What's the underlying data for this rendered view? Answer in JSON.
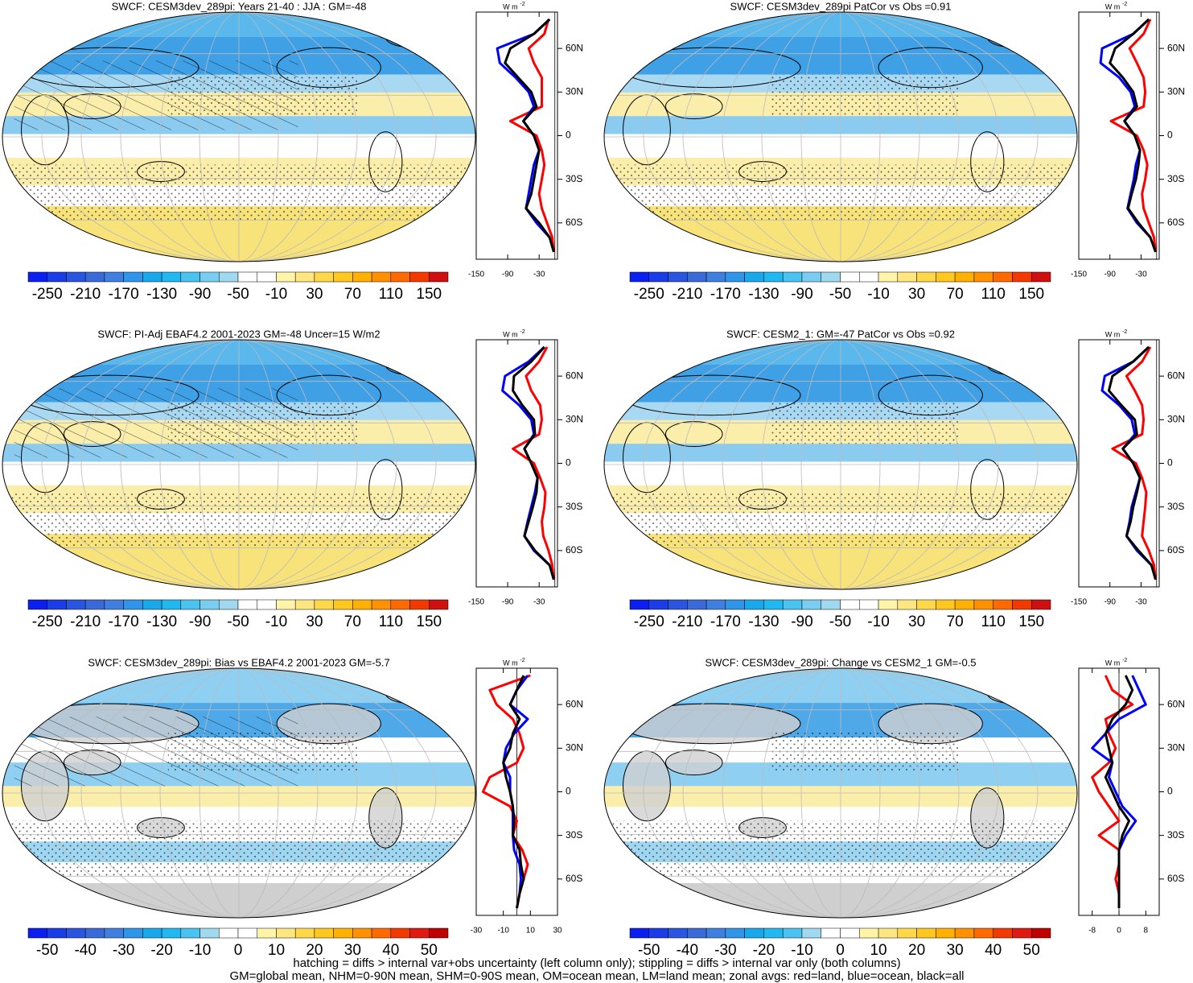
{
  "chart_data": [
    {
      "type": "map",
      "title": "SWCF: CESM3dev_289pi: Years 21-40 : JJA : GM=-48",
      "colorbar": {
        "lim": [
          -270,
          170
        ],
        "ticks": [
          -250,
          -210,
          -170,
          -130,
          -90,
          -50,
          -10,
          30,
          70,
          110,
          150
        ],
        "colors": [
          "#0b1ff0",
          "#1a3de8",
          "#2a55e0",
          "#3a6ad8",
          "#3f7fe0",
          "#2f95e8",
          "#1aa8ec",
          "#20b8f0",
          "#4ac3f0",
          "#78cdf0",
          "#a0d8f0",
          "#ffffff",
          "#ffffff",
          "#fff4a8",
          "#ffe680",
          "#ffd84a",
          "#ffc820",
          "#ffb000",
          "#ff9000",
          "#ff6a00",
          "#f23a00",
          "#d01010"
        ]
      },
      "zonal": {
        "type": "line",
        "unit": {
          "base": "W m",
          "exp": "-2"
        },
        "xlim": [
          -150,
          5
        ],
        "xticks": [
          -150,
          -90,
          -30
        ],
        "ylim": [
          -85,
          85
        ],
        "yticks": [
          {
            "value": 60,
            "label": "60N"
          },
          {
            "value": 30,
            "label": "30N"
          },
          0,
          {
            "value": -30,
            "label": "30S"
          },
          {
            "value": -60,
            "label": "60S"
          }
        ],
        "latitudes": [
          -80,
          -70,
          -60,
          -50,
          -40,
          -30,
          -20,
          -10,
          0,
          10,
          20,
          30,
          40,
          50,
          60,
          70,
          80
        ],
        "series": [
          {
            "color": "#ff0000",
            "values": [
              -2,
              -5,
              -15,
              -25,
              -30,
              -25,
              -20,
              -25,
              -35,
              -85,
              -25,
              -25,
              -25,
              -40,
              -50,
              -20,
              -12
            ]
          },
          {
            "color": "#0000ff",
            "values": [
              null,
              -10,
              -35,
              -55,
              -50,
              -45,
              -40,
              -30,
              -40,
              -60,
              -40,
              -50,
              -75,
              -105,
              -110,
              -40,
              -10
            ]
          },
          {
            "color": "#000000",
            "values": [
              -2,
              -10,
              -30,
              -55,
              -45,
              -40,
              -35,
              -30,
              -40,
              -60,
              -35,
              -45,
              -70,
              -95,
              -85,
              -40,
              -10
            ]
          }
        ]
      }
    },
    {
      "type": "map",
      "title": "SWCF: CESM3dev_289pi PatCor vs Obs =0.91",
      "colorbar": {
        "lim": [
          -270,
          170
        ],
        "ticks": [
          -250,
          -210,
          -170,
          -130,
          -90,
          -50,
          -10,
          30,
          70,
          110,
          150
        ],
        "colors": [
          "#0b1ff0",
          "#1a3de8",
          "#2a55e0",
          "#3a6ad8",
          "#3f7fe0",
          "#2f95e8",
          "#1aa8ec",
          "#20b8f0",
          "#4ac3f0",
          "#78cdf0",
          "#a0d8f0",
          "#ffffff",
          "#ffffff",
          "#fff4a8",
          "#ffe680",
          "#ffd84a",
          "#ffc820",
          "#ffb000",
          "#ff9000",
          "#ff6a00",
          "#f23a00",
          "#d01010"
        ]
      },
      "zonal": {
        "type": "line",
        "unit": {
          "base": "W m",
          "exp": "-2"
        },
        "xlim": [
          -150,
          5
        ],
        "xticks": [
          -150,
          -90,
          -30
        ],
        "ylim": [
          -85,
          85
        ],
        "yticks": [
          {
            "value": 60,
            "label": "60N"
          },
          {
            "value": 30,
            "label": "30N"
          },
          0,
          {
            "value": -30,
            "label": "30S"
          },
          {
            "value": -60,
            "label": "60S"
          }
        ],
        "latitudes": [
          -80,
          -70,
          -60,
          -50,
          -40,
          -30,
          -20,
          -10,
          0,
          10,
          20,
          30,
          40,
          50,
          60,
          70,
          80
        ],
        "series": [
          {
            "color": "#ff0000",
            "values": [
              -2,
              -5,
              -15,
              -25,
              -28,
              -22,
              -18,
              -25,
              -38,
              -88,
              -25,
              -22,
              -25,
              -38,
              -52,
              -25,
              -12
            ]
          },
          {
            "color": "#0000ff",
            "values": [
              null,
              -12,
              -38,
              -56,
              -50,
              -44,
              -40,
              -32,
              -42,
              -62,
              -42,
              -50,
              -72,
              -108,
              -105,
              -45,
              -15
            ]
          },
          {
            "color": "#000000",
            "values": [
              -2,
              -12,
              -35,
              -55,
              -48,
              -40,
              -35,
              -32,
              -42,
              -62,
              -38,
              -45,
              -65,
              -90,
              -80,
              -45,
              -15
            ]
          }
        ]
      }
    },
    {
      "type": "map",
      "title": "SWCF: PI-Adj EBAF4.2 2001-2023 GM=-48 Uncer=15 W/m2",
      "colorbar": {
        "lim": [
          -270,
          170
        ],
        "ticks": [
          -250,
          -210,
          -170,
          -130,
          -90,
          -50,
          -10,
          30,
          70,
          110,
          150
        ],
        "colors": [
          "#0b1ff0",
          "#1a3de8",
          "#2a55e0",
          "#3a6ad8",
          "#3f7fe0",
          "#2f95e8",
          "#1aa8ec",
          "#20b8f0",
          "#4ac3f0",
          "#78cdf0",
          "#a0d8f0",
          "#ffffff",
          "#ffffff",
          "#fff4a8",
          "#ffe680",
          "#ffd84a",
          "#ffc820",
          "#ffb000",
          "#ff9000",
          "#ff6a00",
          "#f23a00",
          "#d01010"
        ]
      },
      "zonal": {
        "type": "line",
        "unit": {
          "base": "W m",
          "exp": "-2"
        },
        "xlim": [
          -150,
          5
        ],
        "xticks": [
          -150,
          -90,
          -30
        ],
        "ylim": [
          -85,
          85
        ],
        "yticks": [
          {
            "value": 60,
            "label": "60N"
          },
          {
            "value": 30,
            "label": "30N"
          },
          0,
          {
            "value": -30,
            "label": "30S"
          },
          {
            "value": -60,
            "label": "60S"
          }
        ],
        "latitudes": [
          -80,
          -70,
          -60,
          -50,
          -40,
          -30,
          -20,
          -10,
          0,
          10,
          20,
          30,
          40,
          50,
          60,
          70,
          80
        ],
        "series": [
          {
            "color": "#ff0000",
            "values": [
              -2,
              -5,
              -12,
              -22,
              -25,
              -20,
              -18,
              -28,
              -40,
              -80,
              -30,
              -25,
              -28,
              -45,
              -55,
              -30,
              -15
            ]
          },
          {
            "color": "#0000ff",
            "values": [
              null,
              -10,
              -40,
              -58,
              -52,
              -45,
              -38,
              -33,
              -45,
              -58,
              -40,
              -45,
              -68,
              -100,
              -95,
              -50,
              -20
            ]
          },
          {
            "color": "#000000",
            "values": [
              -2,
              -10,
              -38,
              -58,
              -50,
              -42,
              -35,
              -33,
              -45,
              -58,
              -38,
              -40,
              -62,
              -80,
              -78,
              -45,
              -20
            ]
          }
        ]
      }
    },
    {
      "type": "map",
      "title": "SWCF: CESM2_1: GM=-47 PatCor vs Obs =0.92",
      "colorbar": {
        "lim": [
          -270,
          170
        ],
        "ticks": [
          -250,
          -210,
          -170,
          -130,
          -90,
          -50,
          -10,
          30,
          70,
          110,
          150
        ],
        "colors": [
          "#0b1ff0",
          "#1a3de8",
          "#2a55e0",
          "#3a6ad8",
          "#3f7fe0",
          "#2f95e8",
          "#1aa8ec",
          "#20b8f0",
          "#4ac3f0",
          "#78cdf0",
          "#a0d8f0",
          "#ffffff",
          "#ffffff",
          "#fff4a8",
          "#ffe680",
          "#ffd84a",
          "#ffc820",
          "#ffb000",
          "#ff9000",
          "#ff6a00",
          "#f23a00",
          "#d01010"
        ]
      },
      "zonal": {
        "type": "line",
        "unit": {
          "base": "W m",
          "exp": "-2"
        },
        "xlim": [
          -150,
          5
        ],
        "xticks": [
          -150,
          -90,
          -30
        ],
        "ylim": [
          -85,
          85
        ],
        "yticks": [
          {
            "value": 60,
            "label": "60N"
          },
          {
            "value": 30,
            "label": "30N"
          },
          0,
          {
            "value": -30,
            "label": "30S"
          },
          {
            "value": -60,
            "label": "60S"
          }
        ],
        "latitudes": [
          -80,
          -70,
          -60,
          -50,
          -40,
          -30,
          -20,
          -10,
          0,
          10,
          20,
          30,
          40,
          50,
          60,
          70,
          80
        ],
        "series": [
          {
            "color": "#ff0000",
            "values": [
              -2,
              -5,
              -15,
              -28,
              -25,
              -22,
              -20,
              -28,
              -40,
              -85,
              -28,
              -25,
              -28,
              -42,
              -58,
              -28,
              -12
            ]
          },
          {
            "color": "#0000ff",
            "values": [
              null,
              -10,
              -38,
              -58,
              -52,
              -48,
              -40,
              -32,
              -45,
              -65,
              -42,
              -48,
              -72,
              -105,
              -100,
              -45,
              -15
            ]
          },
          {
            "color": "#000000",
            "values": [
              -2,
              -10,
              -35,
              -58,
              -50,
              -45,
              -38,
              -32,
              -45,
              -65,
              -38,
              -42,
              -68,
              -92,
              -85,
              -45,
              -15
            ]
          }
        ]
      }
    },
    {
      "type": "map",
      "title": "SWCF: CESM3dev_289pi: Bias vs EBAF4.2 2001-2023 GM=-5.7",
      "colorbar": {
        "lim": [
          -55,
          55
        ],
        "ticks": [
          -50,
          -40,
          -30,
          -20,
          -10,
          0,
          10,
          20,
          30,
          40,
          50
        ],
        "colors": [
          "#0b1ff0",
          "#1a3de8",
          "#2a55e0",
          "#3a6ad8",
          "#3f7fe0",
          "#2f95e8",
          "#1aa8ec",
          "#20b8f0",
          "#4ac3f0",
          "#a0d8f0",
          "#ffffff",
          "#ffffff",
          "#fff4a8",
          "#ffe680",
          "#ffd84a",
          "#ffc820",
          "#ffb000",
          "#ff9000",
          "#ff6a00",
          "#f23a00",
          "#e01a10",
          "#c00000"
        ]
      },
      "zonal": {
        "type": "line",
        "unit": {
          "base": "W m",
          "exp": "-2"
        },
        "xlim": [
          -30,
          30
        ],
        "xticks": [
          -30,
          -10,
          10,
          30
        ],
        "ylim": [
          -85,
          85
        ],
        "yticks": [
          {
            "value": 60,
            "label": "60N"
          },
          {
            "value": 30,
            "label": "30N"
          },
          0,
          {
            "value": -30,
            "label": "30S"
          },
          {
            "value": -60,
            "label": "60S"
          }
        ],
        "latitudes": [
          -80,
          -70,
          -60,
          -50,
          -40,
          -30,
          -20,
          -10,
          0,
          10,
          20,
          30,
          40,
          50,
          60,
          70,
          80
        ],
        "series": [
          {
            "color": "#ff0000",
            "values": [
              0,
              2,
              5,
              8,
              4,
              -3,
              0,
              -5,
              -25,
              -20,
              0,
              5,
              2,
              -3,
              -15,
              -20,
              10
            ]
          },
          {
            "color": "#0000ff",
            "values": [
              null,
              2,
              3,
              2,
              -2,
              -3,
              -3,
              -3,
              -5,
              -5,
              -10,
              -8,
              -2,
              8,
              -5,
              0,
              8
            ]
          },
          {
            "color": "#000000",
            "values": [
              0,
              2,
              5,
              3,
              2,
              -3,
              -2,
              -3,
              -5,
              -8,
              -10,
              -5,
              -3,
              2,
              -5,
              0,
              5
            ]
          }
        ]
      }
    },
    {
      "type": "map",
      "title": "SWCF: CESM3dev_289pi: Change vs CESM2_1 GM=-0.5",
      "colorbar": {
        "lim": [
          -55,
          55
        ],
        "ticks": [
          -50,
          -40,
          -30,
          -20,
          -10,
          0,
          10,
          20,
          30,
          40,
          50
        ],
        "colors": [
          "#0b1ff0",
          "#1a3de8",
          "#2a55e0",
          "#3a6ad8",
          "#3f7fe0",
          "#2f95e8",
          "#1aa8ec",
          "#20b8f0",
          "#4ac3f0",
          "#a0d8f0",
          "#ffffff",
          "#ffffff",
          "#fff4a8",
          "#ffe680",
          "#ffd84a",
          "#ffc820",
          "#ffb000",
          "#ff9000",
          "#ff6a00",
          "#f23a00",
          "#e01a10",
          "#c00000"
        ]
      },
      "zonal": {
        "type": "line",
        "unit": {
          "base": "W m",
          "exp": "-2"
        },
        "xlim": [
          -12,
          12
        ],
        "xticks": [
          -8,
          0,
          8
        ],
        "ylim": [
          -85,
          85
        ],
        "yticks": [
          {
            "value": 60,
            "label": "60N"
          },
          {
            "value": 30,
            "label": "30N"
          },
          0,
          {
            "value": -30,
            "label": "30S"
          },
          {
            "value": -60,
            "label": "60S"
          }
        ],
        "latitudes": [
          -80,
          -70,
          -60,
          -50,
          -40,
          -30,
          -20,
          -10,
          0,
          10,
          20,
          30,
          40,
          50,
          60,
          70,
          80
        ],
        "series": [
          {
            "color": "#ff0000",
            "values": [
              0,
              0,
              -1,
              0,
              0,
              -6,
              0,
              -3,
              -6,
              -8,
              -3,
              -1,
              -3,
              -4,
              4,
              -2,
              -4
            ]
          },
          {
            "color": "#0000ff",
            "values": [
              null,
              0,
              0,
              0,
              0,
              2,
              5,
              1,
              -1,
              -3,
              -2,
              -8,
              -4,
              0,
              8,
              6,
              4
            ]
          },
          {
            "color": "#000000",
            "values": [
              0,
              0,
              0,
              0,
              0,
              1,
              3,
              0,
              -2,
              -4,
              -2,
              -3,
              -4,
              -2,
              2,
              4,
              2
            ]
          }
        ]
      }
    }
  ],
  "footer": [
    "hatching = diffs > internal var+obs uncertainty (left column only); stippling = diffs > internal var only (both columns)",
    "GM=global mean, NHM=0-90N mean, SHM=0-90S mean, OM=ocean mean, LM=land mean; zonal avgs: red=land, blue=ocean, black=all"
  ]
}
